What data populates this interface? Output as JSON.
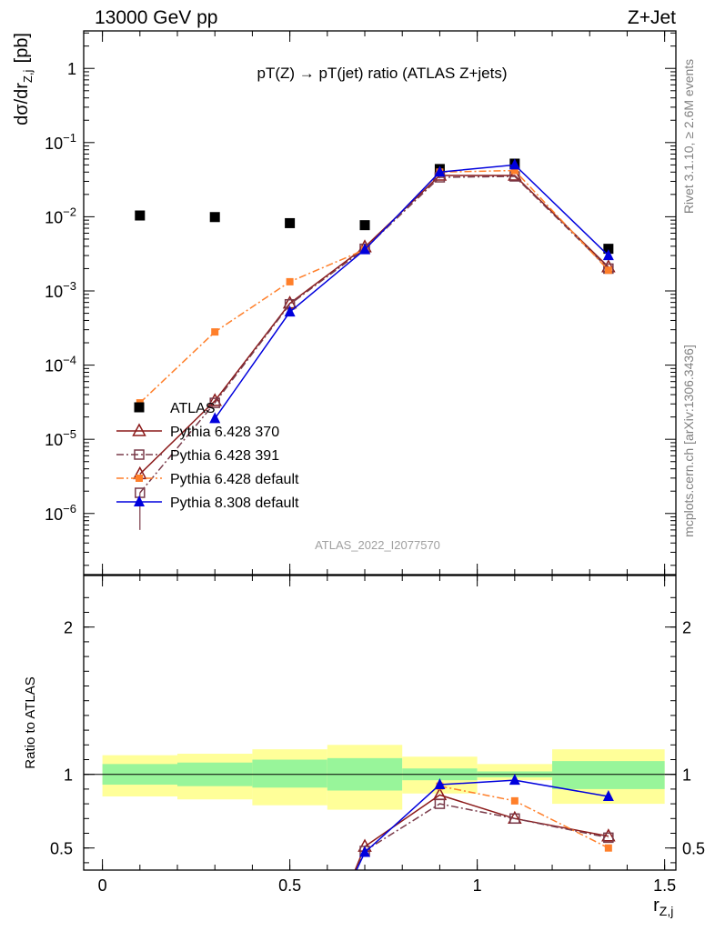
{
  "header": {
    "left": "13000 GeV pp",
    "right": "Z+Jet"
  },
  "side_text": {
    "rivet": "Rivet 3.1.10, ≥ 2.6M events",
    "mcplots": "mcplots.cern.ch [arXiv:1306.3436]"
  },
  "analysis_id": "ATLAS_2022_I2077570",
  "chart_data": [
    {
      "type": "scatter",
      "panel": "main",
      "title": "pT(Z) → pT(jet) ratio (ATLAS Z+jets)",
      "ylabel": "dσ/dr_{Z,j} [pb]",
      "yscale": "log",
      "xlim": [
        -0.05,
        1.53
      ],
      "ylim": [
        1.5e-07,
        3.2
      ],
      "y_ticks": [
        {
          "value": 1e-06,
          "base": "10",
          "exp": "−6"
        },
        {
          "value": 1e-05,
          "base": "10",
          "exp": "−5"
        },
        {
          "value": 0.0001,
          "base": "10",
          "exp": "−4"
        },
        {
          "value": 0.001,
          "base": "10",
          "exp": "−3"
        },
        {
          "value": 0.01,
          "base": "10",
          "exp": "−2"
        },
        {
          "value": 0.1,
          "base": "10",
          "exp": "−1"
        },
        {
          "value": 1,
          "base": "1",
          "exp": ""
        }
      ],
      "legend_position": "bottom-left",
      "series": [
        {
          "name": "ATLAS",
          "color": "#000000",
          "marker": "square-filled",
          "x": [
            0.1,
            0.3,
            0.5,
            0.7,
            0.9,
            1.1,
            1.35
          ],
          "y": [
            0.0104,
            0.0099,
            0.0082,
            0.0077,
            0.044,
            0.052,
            0.0037
          ]
        },
        {
          "name": "Pythia 6.428 370",
          "color": "#8b1a1a",
          "marker": "triangle-open",
          "line": "solid",
          "x": [
            0.1,
            0.3,
            0.5,
            0.7,
            0.9,
            1.1,
            1.35
          ],
          "y": [
            3.4e-06,
            3.3e-05,
            0.00068,
            0.0039,
            0.036,
            0.036,
            0.0021
          ]
        },
        {
          "name": "Pythia 6.428 391",
          "color": "#7a3b4a",
          "marker": "square-open",
          "line": "dashdot",
          "x": [
            0.1,
            0.3,
            0.5,
            0.7,
            0.9,
            1.1,
            1.35
          ],
          "y": [
            1.9e-06,
            3.1e-05,
            0.00066,
            0.0037,
            0.034,
            0.035,
            0.002
          ],
          "err_low_first": 6e-07
        },
        {
          "name": "Pythia 6.428 default",
          "color": "#ff7f2a",
          "marker": "square-filled-small",
          "line": "dashdot",
          "x": [
            0.1,
            0.3,
            0.5,
            0.7,
            0.9,
            1.1,
            1.35
          ],
          "y": [
            3.1e-05,
            0.00028,
            0.00133,
            0.0036,
            0.04,
            0.042,
            0.0019
          ]
        },
        {
          "name": "Pythia 8.308 default",
          "color": "#0000dd",
          "marker": "triangle-filled",
          "line": "solid",
          "x": [
            0.3,
            0.5,
            0.7,
            0.9,
            1.1,
            1.35
          ],
          "y": [
            1.9e-05,
            0.00052,
            0.0036,
            0.04,
            0.05,
            0.003
          ]
        }
      ]
    },
    {
      "type": "line",
      "panel": "ratio",
      "xlabel": "r_{Z,j}",
      "ylabel": "Ratio to ATLAS",
      "xlim": [
        -0.05,
        1.53
      ],
      "ylim": [
        0.35,
        2.35
      ],
      "x_ticks": [
        0,
        0.5,
        1,
        1.5
      ],
      "x_tick_labels": [
        "0",
        "0.5",
        "1",
        "1.5"
      ],
      "y_ticks": [
        0.5,
        1,
        2
      ],
      "y_tick_labels": [
        "0.5",
        "1",
        "2"
      ],
      "bands": [
        {
          "x_lo": 0.0,
          "x_hi": 0.2,
          "inner": [
            0.93,
            1.07
          ],
          "outer": [
            0.85,
            1.13
          ]
        },
        {
          "x_lo": 0.2,
          "x_hi": 0.4,
          "inner": [
            0.92,
            1.08
          ],
          "outer": [
            0.83,
            1.14
          ]
        },
        {
          "x_lo": 0.4,
          "x_hi": 0.6,
          "inner": [
            0.91,
            1.1
          ],
          "outer": [
            0.79,
            1.17
          ]
        },
        {
          "x_lo": 0.6,
          "x_hi": 0.8,
          "inner": [
            0.89,
            1.11
          ],
          "outer": [
            0.76,
            1.2
          ]
        },
        {
          "x_lo": 0.8,
          "x_hi": 1.0,
          "inner": [
            0.96,
            1.04
          ],
          "outer": [
            0.87,
            1.12
          ]
        },
        {
          "x_lo": 1.0,
          "x_hi": 1.2,
          "inner": [
            0.98,
            1.02
          ],
          "outer": [
            0.96,
            1.07
          ]
        },
        {
          "x_lo": 1.2,
          "x_hi": 1.5,
          "inner": [
            0.9,
            1.09
          ],
          "outer": [
            0.8,
            1.17
          ]
        }
      ],
      "band_colors": {
        "inner": "#98f59a",
        "outer": "#ffff99"
      },
      "series": [
        {
          "name": "Pythia 6.428 370",
          "color": "#8b1a1a",
          "marker": "triangle-open",
          "line": "solid",
          "x": [
            0.65,
            0.7,
            0.9,
            1.1,
            1.35
          ],
          "y": [
            0.2,
            0.51,
            0.86,
            0.7,
            0.58
          ]
        },
        {
          "name": "Pythia 6.428 391",
          "color": "#7a3b4a",
          "marker": "square-open",
          "line": "dashdot",
          "x": [
            0.65,
            0.7,
            0.9,
            1.1,
            1.35
          ],
          "y": [
            0.2,
            0.48,
            0.8,
            0.7,
            0.57
          ]
        },
        {
          "name": "Pythia 6.428 default",
          "color": "#ff7f2a",
          "marker": "square-filled-small",
          "line": "dashdot",
          "x": [
            0.9,
            1.1,
            1.35
          ],
          "y": [
            0.92,
            0.82,
            0.5
          ]
        },
        {
          "name": "Pythia 8.308 default",
          "color": "#0000dd",
          "marker": "triangle-filled",
          "line": "solid",
          "x": [
            0.65,
            0.7,
            0.9,
            1.1,
            1.35
          ],
          "y": [
            0.2,
            0.47,
            0.93,
            0.96,
            0.85
          ]
        }
      ]
    }
  ]
}
